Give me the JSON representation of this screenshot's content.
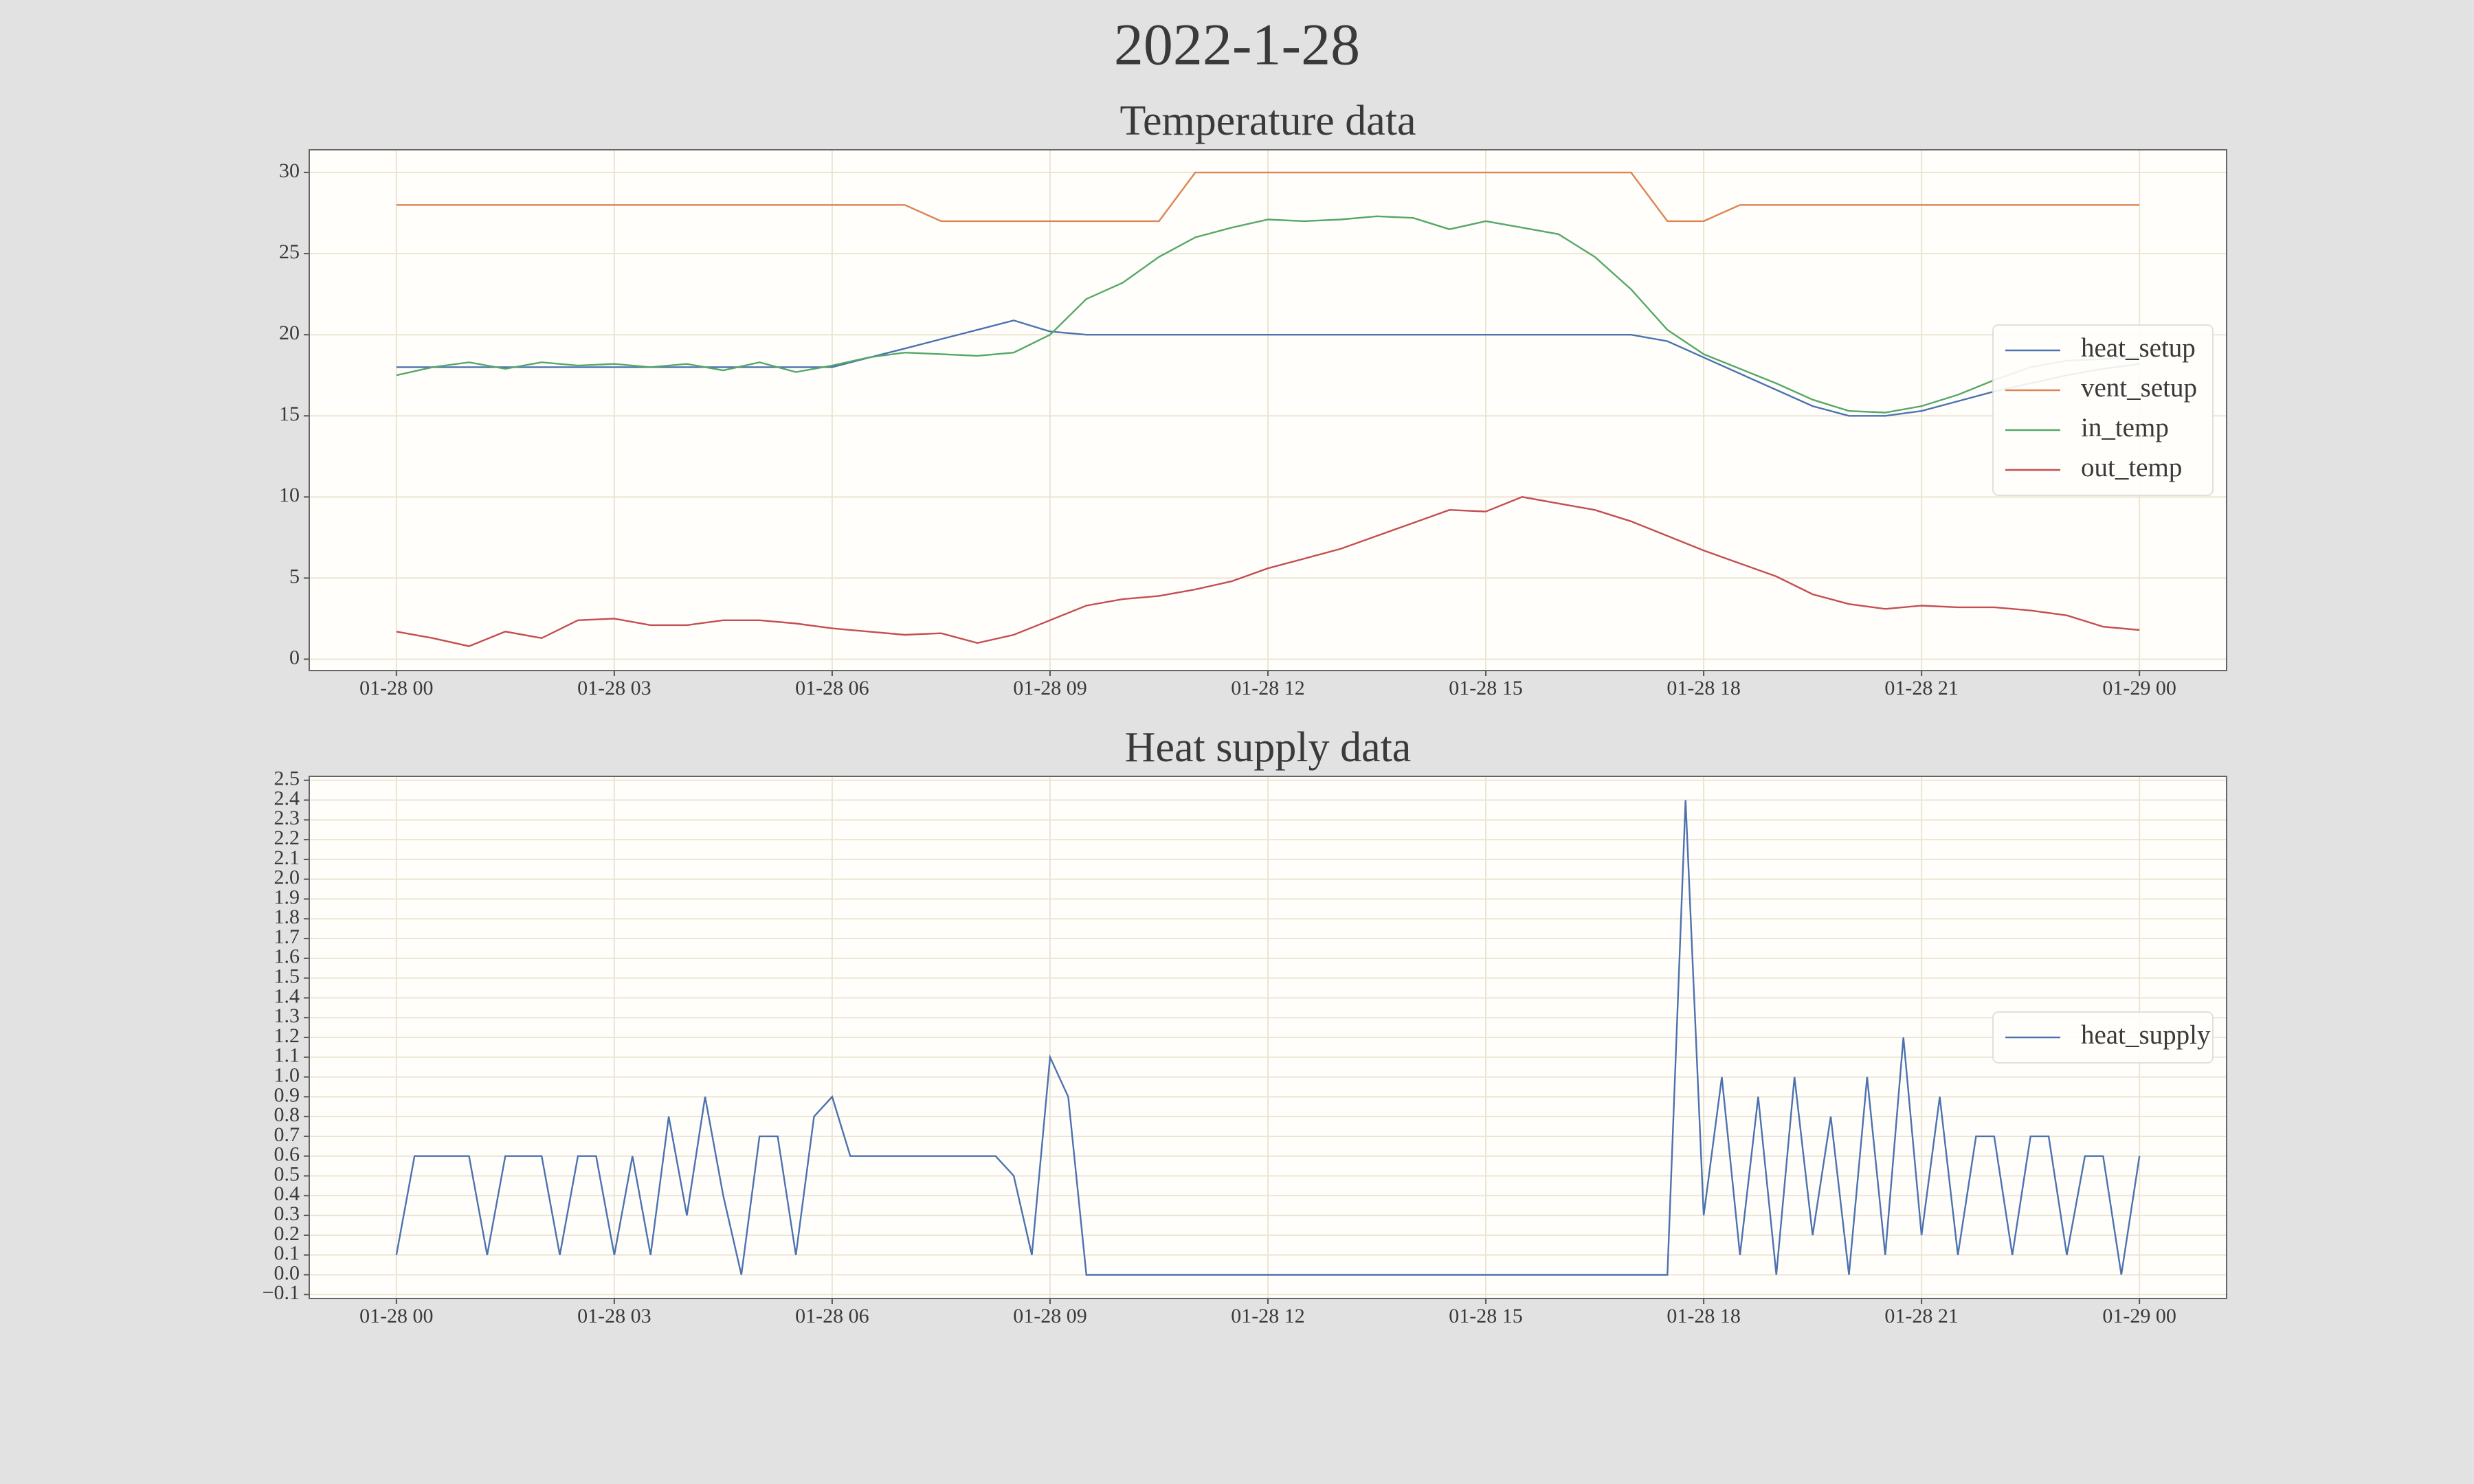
{
  "title": "2022-1-28",
  "chart_data": [
    {
      "type": "line",
      "title": "Temperature data",
      "x": [
        0,
        0.5,
        1,
        1.5,
        2,
        2.5,
        3,
        3.5,
        4,
        4.5,
        5,
        5.5,
        6,
        6.5,
        7,
        7.5,
        8,
        8.5,
        9,
        9.5,
        10,
        10.5,
        11,
        11.5,
        12,
        12.5,
        13,
        13.5,
        14,
        14.5,
        15,
        15.5,
        16,
        16.5,
        17,
        17.5,
        18,
        18.5,
        19,
        19.5,
        20,
        20.5,
        21,
        21.5,
        22,
        22.5,
        23,
        23.5,
        24
      ],
      "series": [
        {
          "name": "heat_setup",
          "color": "#4c72b0",
          "values": [
            18,
            18,
            18,
            18,
            18,
            18,
            18,
            18,
            18,
            18,
            18,
            18,
            18,
            18.58,
            19.15,
            19.73,
            20.3,
            20.88,
            20.2,
            20,
            20,
            20,
            20,
            20,
            20,
            20,
            20,
            20,
            20,
            20,
            20,
            20,
            20,
            20,
            20,
            19.6,
            18.6,
            17.6,
            16.6,
            15.6,
            15,
            15,
            15.3,
            15.9,
            16.5,
            17,
            17.5,
            17.9,
            18.2
          ]
        },
        {
          "name": "vent_setup",
          "color": "#dd8452",
          "values": [
            28,
            28,
            28,
            28,
            28,
            28,
            28,
            28,
            28,
            28,
            28,
            28,
            28,
            28,
            28,
            27,
            27,
            27,
            27,
            27,
            27,
            27,
            30,
            30,
            30,
            30,
            30,
            30,
            30,
            30,
            30,
            30,
            30,
            30,
            30,
            27,
            27,
            28,
            28,
            28,
            28,
            28,
            28,
            28,
            28,
            28,
            28,
            28,
            28
          ]
        },
        {
          "name": "in_temp",
          "color": "#55a868",
          "values": [
            17.5,
            18,
            18.3,
            17.9,
            18.3,
            18.1,
            18.2,
            18,
            18.2,
            17.8,
            18.3,
            17.7,
            18.1,
            18.6,
            18.9,
            18.8,
            18.7,
            18.9,
            20,
            22.2,
            23.2,
            24.8,
            26,
            26.6,
            27.1,
            27,
            27.1,
            27.3,
            27.2,
            26.5,
            27,
            26.6,
            26.2,
            24.8,
            22.8,
            20.3,
            18.8,
            17.9,
            17,
            16,
            15.3,
            15.2,
            15.6,
            16.3,
            17.2,
            18,
            18.4,
            18.5,
            18.6
          ]
        },
        {
          "name": "out_temp",
          "color": "#c44e52",
          "values": [
            1.7,
            1.3,
            0.8,
            1.7,
            1.3,
            2.4,
            2.5,
            2.1,
            2.1,
            2.4,
            2.4,
            2.2,
            1.9,
            1.7,
            1.5,
            1.6,
            1.0,
            1.5,
            2.4,
            3.3,
            3.7,
            3.9,
            4.3,
            4.8,
            5.6,
            6.2,
            6.8,
            7.6,
            8.4,
            9.2,
            9.1,
            10,
            9.6,
            9.2,
            8.5,
            7.6,
            6.7,
            5.9,
            5.1,
            4,
            3.4,
            3.1,
            3.3,
            3.2,
            3.2,
            3,
            2.7,
            2.0,
            1.8
          ]
        }
      ],
      "xlim": [
        -1.2,
        25.2
      ],
      "xticks": [
        {
          "value": 0,
          "label": "01-28 00"
        },
        {
          "value": 3,
          "label": "01-28 03"
        },
        {
          "value": 6,
          "label": "01-28 06"
        },
        {
          "value": 9,
          "label": "01-28 09"
        },
        {
          "value": 12,
          "label": "01-28 12"
        },
        {
          "value": 15,
          "label": "01-28 15"
        },
        {
          "value": 18,
          "label": "01-28 18"
        },
        {
          "value": 21,
          "label": "01-28 21"
        },
        {
          "value": 24,
          "label": "01-29 00"
        }
      ],
      "ylim": [
        -0.7,
        31.4
      ],
      "yticks": [
        0,
        5,
        10,
        15,
        20,
        25,
        30
      ],
      "grid": true,
      "legend": "center right"
    },
    {
      "type": "line",
      "title": "Heat supply data",
      "x": [
        0,
        0.25,
        0.5,
        0.75,
        1,
        1.25,
        1.5,
        1.75,
        2,
        2.25,
        2.5,
        2.75,
        3,
        3.25,
        3.5,
        3.75,
        4,
        4.25,
        4.5,
        4.75,
        5,
        5.25,
        5.5,
        5.75,
        6,
        6.25,
        6.5,
        6.75,
        7,
        7.25,
        7.5,
        7.75,
        8,
        8.25,
        8.5,
        8.75,
        9,
        9.25,
        9.5,
        9.75,
        10,
        10.25,
        10.5,
        10.75,
        11,
        11.25,
        11.5,
        11.75,
        12,
        12.25,
        12.5,
        12.75,
        13,
        13.25,
        13.5,
        13.75,
        14,
        14.25,
        14.5,
        14.75,
        15,
        15.25,
        15.5,
        15.75,
        16,
        16.25,
        16.5,
        16.75,
        17,
        17.25,
        17.5,
        17.75,
        18,
        18.25,
        18.5,
        18.75,
        19,
        19.25,
        19.5,
        19.75,
        20,
        20.25,
        20.5,
        20.75,
        21,
        21.25,
        21.5,
        21.75,
        22,
        22.25,
        22.5,
        22.75,
        23,
        23.25,
        23.5,
        23.75,
        24
      ],
      "series": [
        {
          "name": "heat_supply",
          "color": "#4c72b0",
          "values": [
            0.1,
            0.6,
            0.6,
            0.6,
            0.6,
            0.1,
            0.6,
            0.6,
            0.6,
            0.1,
            0.6,
            0.6,
            0.1,
            0.6,
            0.1,
            0.8,
            0.3,
            0.9,
            0.4,
            0.0,
            0.7,
            0.7,
            0.1,
            0.8,
            0.9,
            0.6,
            0.6,
            0.6,
            0.6,
            0.6,
            0.6,
            0.6,
            0.6,
            0.6,
            0.5,
            0.1,
            1.1,
            0.9,
            0.0,
            0,
            0,
            0,
            0,
            0,
            0,
            0,
            0,
            0,
            0,
            0,
            0,
            0,
            0,
            0,
            0,
            0,
            0,
            0,
            0,
            0,
            0,
            0,
            0,
            0,
            0,
            0,
            0,
            0,
            0,
            0,
            0,
            2.4,
            0.3,
            1.0,
            0.1,
            0.9,
            0.0,
            1.0,
            0.2,
            0.8,
            0.0,
            1.0,
            0.1,
            1.2,
            0.2,
            0.9,
            0.1,
            0.7,
            0.7,
            0.1,
            0.7,
            0.7,
            0.1,
            0.6,
            0.6,
            0.0,
            0.6
          ]
        }
      ],
      "xlim": [
        -1.2,
        25.2
      ],
      "xticks": [
        {
          "value": 0,
          "label": "01-28 00"
        },
        {
          "value": 3,
          "label": "01-28 03"
        },
        {
          "value": 6,
          "label": "01-28 06"
        },
        {
          "value": 9,
          "label": "01-28 09"
        },
        {
          "value": 12,
          "label": "01-28 12"
        },
        {
          "value": 15,
          "label": "01-28 15"
        },
        {
          "value": 18,
          "label": "01-28 18"
        },
        {
          "value": 21,
          "label": "01-28 21"
        },
        {
          "value": 24,
          "label": "01-29 00"
        }
      ],
      "ylim": [
        -0.12,
        2.52
      ],
      "yticks": [
        {
          "value": -0.1,
          "label": "−0.1"
        },
        {
          "value": 0,
          "label": "0.0"
        },
        0.1,
        0.2,
        0.3,
        0.4,
        0.5,
        0.6,
        0.7,
        0.8,
        0.9,
        {
          "value": 1,
          "label": "1.0"
        },
        1.1,
        1.2,
        1.3,
        1.4,
        1.5,
        1.6,
        1.7,
        1.8,
        1.9,
        {
          "value": 2,
          "label": "2.0"
        },
        2.1,
        2.2,
        2.3,
        2.4,
        2.5
      ],
      "grid": true,
      "legend": "center right"
    }
  ]
}
